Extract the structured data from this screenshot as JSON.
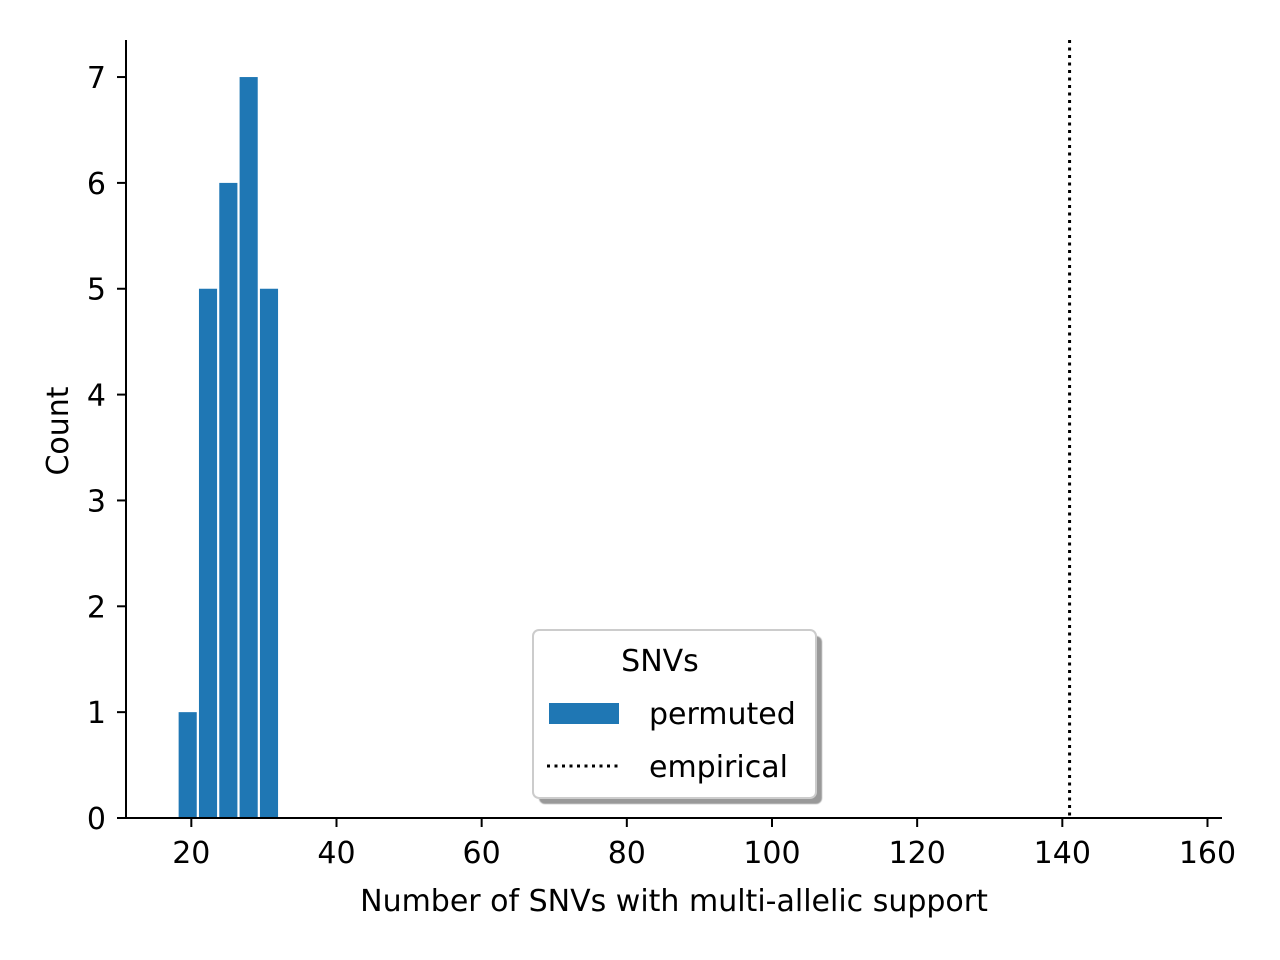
{
  "chart_data": {
    "type": "bar",
    "title": "",
    "xlabel": "Number of SNVs with multi-allelic support",
    "ylabel": "Count",
    "xlim": [
      11,
      162
    ],
    "ylim": [
      0,
      7.35
    ],
    "xticks": [
      20,
      40,
      60,
      80,
      100,
      120,
      140,
      160
    ],
    "yticks": [
      0,
      1,
      2,
      3,
      4,
      5,
      6,
      7
    ],
    "grid": false,
    "series": [
      {
        "name": "permuted",
        "kind": "histogram",
        "color": "#1f77b4",
        "bins": [
          {
            "start": 18.1,
            "end": 20.9,
            "count": 1
          },
          {
            "start": 20.9,
            "end": 23.7,
            "count": 5
          },
          {
            "start": 23.7,
            "end": 26.5,
            "count": 6
          },
          {
            "start": 26.5,
            "end": 29.3,
            "count": 7
          },
          {
            "start": 29.3,
            "end": 32.1,
            "count": 5
          }
        ]
      },
      {
        "name": "empirical",
        "kind": "vline",
        "style": "dotted",
        "color": "#000000",
        "x": 141
      }
    ],
    "legend": {
      "title": "SNVs",
      "entries": [
        "permuted",
        "empirical"
      ],
      "placement": "lower-center"
    }
  }
}
